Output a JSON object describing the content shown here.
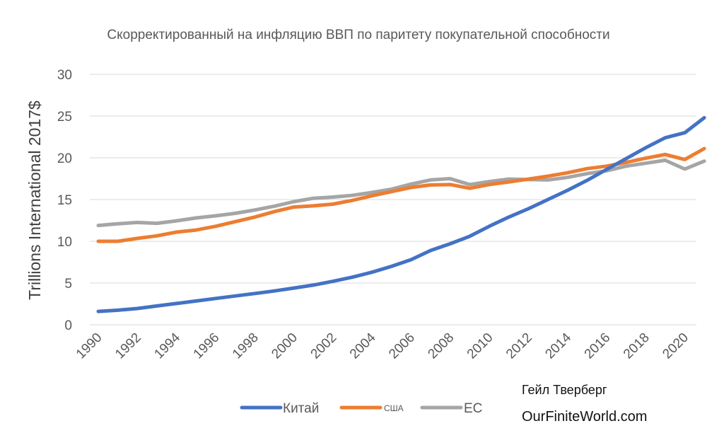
{
  "chart_data": {
    "type": "line",
    "title": "Скорректированный на инфляцию ВВП по паритету покупательной способности",
    "xlabel": "",
    "ylabel": "Trillions International 2017$",
    "ylim": [
      0,
      30
    ],
    "yticks": [
      "0",
      "5",
      "10",
      "15",
      "20",
      "25",
      "30"
    ],
    "xlim": [
      1990,
      2021
    ],
    "xtick_labels": [
      "1990",
      "1992",
      "1994",
      "1996",
      "1998",
      "2000",
      "2002",
      "2004",
      "2006",
      "2008",
      "2010",
      "2012",
      "2014",
      "2016",
      "2018",
      "2020"
    ],
    "grid": true,
    "legend_position": "bottom",
    "x": [
      1990,
      1991,
      1992,
      1993,
      1994,
      1995,
      1996,
      1997,
      1998,
      1999,
      2000,
      2001,
      2002,
      2003,
      2004,
      2005,
      2006,
      2007,
      2008,
      2009,
      2010,
      2011,
      2012,
      2013,
      2014,
      2015,
      2016,
      2017,
      2018,
      2019,
      2020,
      2021
    ],
    "series": [
      {
        "name": "Китай",
        "color": "#4472C4",
        "values": [
          1.6,
          1.75,
          1.95,
          2.25,
          2.55,
          2.85,
          3.15,
          3.45,
          3.75,
          4.05,
          4.4,
          4.75,
          5.2,
          5.7,
          6.3,
          7.0,
          7.8,
          8.9,
          9.7,
          10.6,
          11.8,
          12.9,
          13.9,
          15.0,
          16.1,
          17.3,
          18.6,
          19.9,
          21.2,
          22.4,
          23.0,
          24.8
        ]
      },
      {
        "name": "США",
        "color": "#ED7D31",
        "values": [
          10.0,
          10.0,
          10.35,
          10.65,
          11.1,
          11.35,
          11.8,
          12.35,
          12.9,
          13.55,
          14.1,
          14.25,
          14.45,
          14.9,
          15.45,
          15.95,
          16.45,
          16.75,
          16.8,
          16.35,
          16.8,
          17.1,
          17.45,
          17.8,
          18.2,
          18.7,
          19.0,
          19.45,
          19.95,
          20.4,
          19.8,
          21.1
        ]
      },
      {
        "name": "ЕС",
        "color": "#A5A5A5",
        "values": [
          11.9,
          12.1,
          12.25,
          12.15,
          12.45,
          12.8,
          13.05,
          13.35,
          13.75,
          14.2,
          14.75,
          15.15,
          15.3,
          15.5,
          15.85,
          16.25,
          16.85,
          17.35,
          17.5,
          16.8,
          17.15,
          17.45,
          17.4,
          17.35,
          17.65,
          18.1,
          18.45,
          19.0,
          19.35,
          19.7,
          18.65,
          19.6
        ]
      }
    ]
  },
  "credit": {
    "author": "Гейл Тверберг",
    "site": "OurFiniteWorld.com"
  }
}
